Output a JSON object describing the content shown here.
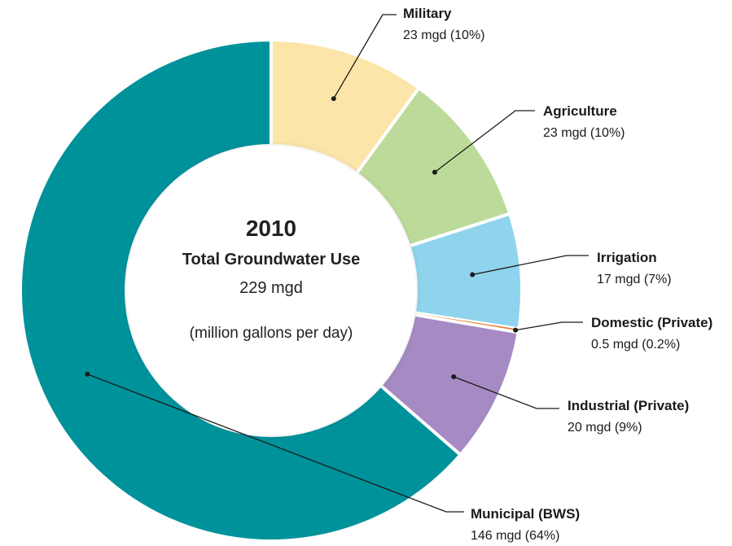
{
  "chart_data": {
    "type": "pie",
    "center_text": {
      "year": "2010",
      "title": "Total Groundwater Use",
      "total": "229 mgd",
      "units": "(million gallons per day)"
    },
    "slices": [
      {
        "name": "Military",
        "value": 23,
        "value_label": "23 mgd (10%)",
        "color": "#fbe5a8"
      },
      {
        "name": "Agriculture",
        "value": 23,
        "value_label": "23 mgd (10%)",
        "color": "#bcdb9a"
      },
      {
        "name": "Irrigation",
        "value": 17,
        "value_label": "17 mgd (7%)",
        "color": "#8fd4ec"
      },
      {
        "name": "Domestic (Private)",
        "value": 0.5,
        "value_label": "0.5 mgd (0.2%)",
        "color": "#e8731c"
      },
      {
        "name": "Industrial (Private)",
        "value": 20,
        "value_label": "20 mgd (9%)",
        "color": "#a58ac4"
      },
      {
        "name": "Municipal (BWS)",
        "value": 146,
        "value_label": "146 mgd (64%)",
        "color": "#00929b"
      }
    ]
  }
}
